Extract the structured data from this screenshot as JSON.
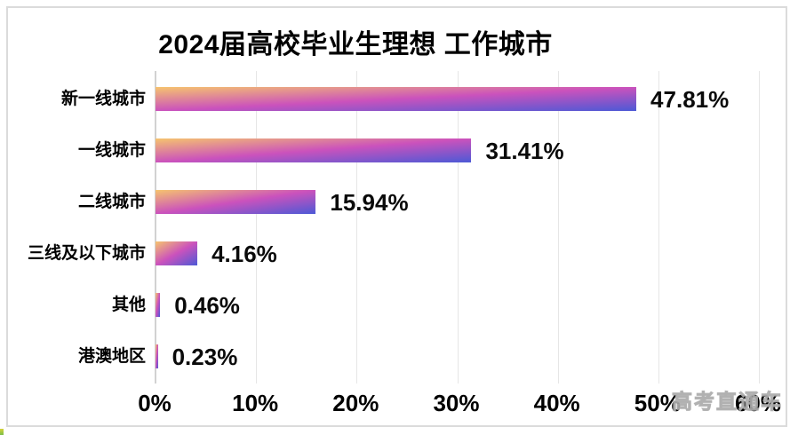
{
  "panel": {
    "background": "#ffffff",
    "border_color": "#dbdbdb"
  },
  "title": "2024届高校毕业生理想 工作城市",
  "watermark": "高考直通车",
  "colors": {
    "bar_gradient_start": "#f6c46e",
    "bar_gradient_mid": "#cb52bc",
    "bar_gradient_end": "#4c59d6",
    "gridline": "#e6e6e6",
    "axis_line": "#d2d2d2",
    "text": "#000000",
    "watermark": "#c0c0c0"
  },
  "chart_data": {
    "type": "bar",
    "orientation": "horizontal",
    "title": "2024届高校毕业生理想 工作城市",
    "categories": [
      "新一线城市",
      "一线城市",
      "二线城市",
      "三线及以下城市",
      "其他",
      "港澳地区"
    ],
    "values": [
      47.81,
      31.41,
      15.94,
      4.16,
      0.46,
      0.23
    ],
    "value_labels": [
      "47.81%",
      "31.41%",
      "15.94%",
      "4.16%",
      "0.46%",
      "0.23%"
    ],
    "x_ticks": [
      "0%",
      "10%",
      "20%",
      "30%",
      "40%",
      "50%",
      "60%"
    ],
    "x_tick_values": [
      0,
      10,
      20,
      30,
      40,
      50,
      60
    ],
    "xlim": [
      0,
      60
    ],
    "xlabel": "",
    "ylabel": "",
    "grid": true,
    "legend": false
  }
}
